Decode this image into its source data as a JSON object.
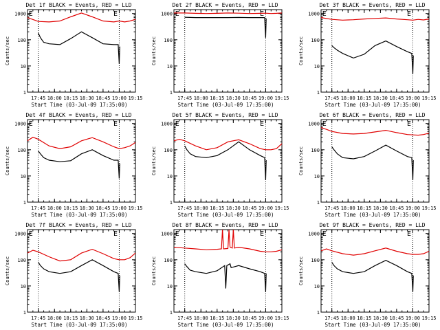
{
  "colors": {
    "events": "#000000",
    "lld": "#e00000",
    "axis": "#000000",
    "background": "#ffffff"
  },
  "axes": {
    "ylabel": "Counts/sec",
    "xlabel": "Start Time (03-Jul-09 17:35:00)",
    "x_ticks": [
      "17:45",
      "18:00",
      "18:15",
      "18:30",
      "18:45",
      "19:00",
      "19:15"
    ],
    "y_ticks": [
      "1",
      "10",
      "100",
      "1000"
    ]
  },
  "chart_data": [
    {
      "type": "line",
      "title": "Det 1f BLACK = Events, RED = LLD",
      "label": "E",
      "xlim": [
        0,
        100
      ],
      "ylim_log10": [
        0,
        3.15
      ],
      "grid": false,
      "xdomain": "minutes since start time",
      "vlines": [
        10,
        85
      ],
      "series": [
        {
          "name": "LLD",
          "x": [
            0,
            10,
            20,
            30,
            40,
            50,
            60,
            70,
            80,
            85,
            90,
            95,
            100
          ],
          "y": [
            700,
            500,
            480,
            520,
            750,
            1050,
            750,
            520,
            480,
            520,
            480,
            520,
            600
          ]
        },
        {
          "name": "Events",
          "x": [
            10,
            12,
            15,
            20,
            30,
            40,
            50,
            60,
            70,
            80,
            84,
            85,
            85.5
          ],
          "y": [
            180,
            120,
            80,
            70,
            65,
            110,
            200,
            120,
            70,
            65,
            65,
            12,
            55
          ]
        }
      ]
    },
    {
      "type": "line",
      "title": "Det 2f BLACK = Events, RED = LLD",
      "label": "E",
      "xlim": [
        0,
        100
      ],
      "ylim_log10": [
        0,
        3.15
      ],
      "grid": false,
      "xdomain": "minutes since start time",
      "vlines": [
        10,
        85
      ],
      "series": [
        {
          "name": "LLD",
          "x": [
            0,
            10,
            20,
            30,
            40,
            50,
            60,
            70,
            80,
            85,
            90,
            95,
            100
          ],
          "y": [
            1050,
            1050,
            1020,
            1000,
            1020,
            1050,
            1030,
            1000,
            1020,
            1030,
            1000,
            1020,
            1050
          ]
        },
        {
          "name": "Events",
          "x": [
            10,
            20,
            30,
            40,
            50,
            60,
            70,
            80,
            84,
            85,
            85.5
          ],
          "y": [
            720,
            700,
            700,
            700,
            700,
            710,
            700,
            700,
            700,
            120,
            650
          ]
        }
      ]
    },
    {
      "type": "line",
      "title": "Det 3f BLACK = Events, RED = LLD",
      "label": "E",
      "xlim": [
        0,
        100
      ],
      "ylim_log10": [
        0,
        3.15
      ],
      "grid": false,
      "xdomain": "minutes since start time",
      "vlines": [
        10,
        85
      ],
      "series": [
        {
          "name": "LLD",
          "x": [
            0,
            10,
            20,
            30,
            40,
            50,
            60,
            70,
            80,
            85,
            90,
            95,
            100
          ],
          "y": [
            700,
            600,
            560,
            580,
            620,
            650,
            680,
            620,
            580,
            560,
            600,
            570,
            620
          ]
        },
        {
          "name": "Events",
          "x": [
            10,
            12,
            15,
            20,
            30,
            40,
            50,
            60,
            70,
            80,
            84,
            85,
            85.5
          ],
          "y": [
            60,
            50,
            40,
            30,
            20,
            28,
            60,
            90,
            55,
            35,
            30,
            5,
            25
          ]
        }
      ]
    },
    {
      "type": "line",
      "title": "Det 4f BLACK = Events, RED = LLD",
      "label": "E",
      "xlim": [
        0,
        100
      ],
      "ylim_log10": [
        0,
        3.15
      ],
      "grid": false,
      "xdomain": "minutes since start time",
      "vlines": [
        10,
        85
      ],
      "series": [
        {
          "name": "LLD",
          "x": [
            0,
            5,
            10,
            20,
            30,
            40,
            50,
            60,
            70,
            80,
            85,
            90,
            95,
            100
          ],
          "y": [
            220,
            300,
            250,
            140,
            110,
            130,
            220,
            290,
            200,
            130,
            110,
            120,
            140,
            190
          ]
        },
        {
          "name": "Events",
          "x": [
            10,
            12,
            15,
            20,
            30,
            40,
            50,
            60,
            70,
            80,
            84,
            85,
            85.5
          ],
          "y": [
            90,
            70,
            50,
            40,
            35,
            38,
            70,
            100,
            60,
            40,
            40,
            8,
            30
          ]
        }
      ]
    },
    {
      "type": "line",
      "title": "Det 5f BLACK = Events, RED = LLD",
      "label": "E",
      "xlim": [
        0,
        100
      ],
      "ylim_log10": [
        0,
        3.15
      ],
      "grid": false,
      "xdomain": "minutes since start time",
      "vlines": [
        10,
        85
      ],
      "series": [
        {
          "name": "LLD",
          "x": [
            0,
            5,
            10,
            20,
            30,
            40,
            50,
            60,
            70,
            80,
            85,
            90,
            95,
            100
          ],
          "y": [
            220,
            250,
            220,
            140,
            100,
            120,
            200,
            240,
            170,
            110,
            100,
            100,
            110,
            170
          ]
        },
        {
          "name": "Events",
          "x": [
            10,
            12,
            15,
            20,
            30,
            40,
            50,
            60,
            70,
            80,
            84,
            85,
            85.5
          ],
          "y": [
            140,
            100,
            70,
            55,
            50,
            60,
            100,
            200,
            100,
            60,
            50,
            7,
            40
          ]
        }
      ]
    },
    {
      "type": "line",
      "title": "Det 6f BLACK = Events, RED = LLD",
      "label": "E",
      "xlim": [
        0,
        100
      ],
      "ylim_log10": [
        0,
        3.15
      ],
      "grid": false,
      "xdomain": "minutes since start time",
      "vlines": [
        10,
        85
      ],
      "series": [
        {
          "name": "LLD",
          "x": [
            0,
            5,
            10,
            20,
            30,
            40,
            50,
            60,
            70,
            80,
            85,
            90,
            95,
            100
          ],
          "y": [
            700,
            600,
            500,
            420,
            400,
            420,
            480,
            550,
            450,
            380,
            370,
            360,
            380,
            430
          ]
        },
        {
          "name": "Events",
          "x": [
            10,
            12,
            15,
            20,
            30,
            40,
            50,
            60,
            70,
            80,
            84,
            85,
            85.5
          ],
          "y": [
            130,
            100,
            70,
            50,
            45,
            55,
            90,
            150,
            90,
            55,
            50,
            7,
            40
          ]
        }
      ]
    },
    {
      "type": "line",
      "title": "Det 7f BLACK = Events, RED = LLD",
      "label": "E",
      "xlim": [
        0,
        100
      ],
      "ylim_log10": [
        0,
        3.15
      ],
      "grid": false,
      "xdomain": "minutes since start time",
      "vlines": [
        10,
        85
      ],
      "series": [
        {
          "name": "LLD",
          "x": [
            0,
            5,
            10,
            20,
            30,
            40,
            50,
            60,
            70,
            80,
            85,
            90,
            95,
            100
          ],
          "y": [
            180,
            230,
            200,
            130,
            90,
            100,
            180,
            250,
            170,
            110,
            100,
            100,
            120,
            180
          ]
        },
        {
          "name": "Events",
          "x": [
            10,
            12,
            15,
            20,
            30,
            40,
            50,
            60,
            70,
            80,
            84,
            85,
            85.5
          ],
          "y": [
            80,
            60,
            45,
            35,
            30,
            35,
            60,
            100,
            60,
            35,
            30,
            6,
            25
          ]
        }
      ]
    },
    {
      "type": "line",
      "title": "Det 8f BLACK = Events, RED = LLD",
      "label": "E",
      "xlim": [
        0,
        100
      ],
      "ylim_log10": [
        0,
        3.15
      ],
      "grid": false,
      "xdomain": "minutes since start time",
      "vlines": [
        10,
        85
      ],
      "series": [
        {
          "name": "LLD",
          "x": [
            0,
            10,
            20,
            30,
            40,
            44,
            45,
            46,
            50,
            51,
            52,
            54,
            55,
            56,
            60,
            70,
            80,
            85,
            90,
            95,
            100
          ],
          "y": [
            300,
            280,
            260,
            240,
            250,
            260,
            1400,
            260,
            270,
            1400,
            300,
            280,
            1400,
            280,
            300,
            260,
            210,
            200,
            200,
            210,
            240
          ]
        },
        {
          "name": "Events",
          "x": [
            10,
            12,
            15,
            20,
            30,
            40,
            47,
            48,
            49,
            52,
            53,
            60,
            70,
            80,
            84,
            85,
            85.5
          ],
          "y": [
            70,
            55,
            40,
            35,
            30,
            38,
            60,
            8,
            60,
            70,
            50,
            60,
            45,
            35,
            30,
            6,
            30
          ]
        }
      ]
    },
    {
      "type": "line",
      "title": "Det 9f BLACK = Events, RED = LLD",
      "label": "E",
      "xlim": [
        0,
        100
      ],
      "ylim_log10": [
        0,
        3.15
      ],
      "grid": false,
      "xdomain": "minutes since start time",
      "vlines": [
        10,
        85
      ],
      "series": [
        {
          "name": "LLD",
          "x": [
            0,
            5,
            10,
            20,
            30,
            40,
            50,
            60,
            70,
            80,
            85,
            90,
            95,
            100
          ],
          "y": [
            220,
            260,
            220,
            170,
            150,
            170,
            220,
            280,
            210,
            170,
            160,
            160,
            170,
            210
          ]
        },
        {
          "name": "Events",
          "x": [
            10,
            12,
            15,
            20,
            30,
            40,
            50,
            60,
            70,
            80,
            84,
            85,
            85.5
          ],
          "y": [
            80,
            60,
            45,
            35,
            30,
            35,
            60,
            95,
            60,
            35,
            30,
            6,
            25
          ]
        }
      ]
    }
  ]
}
